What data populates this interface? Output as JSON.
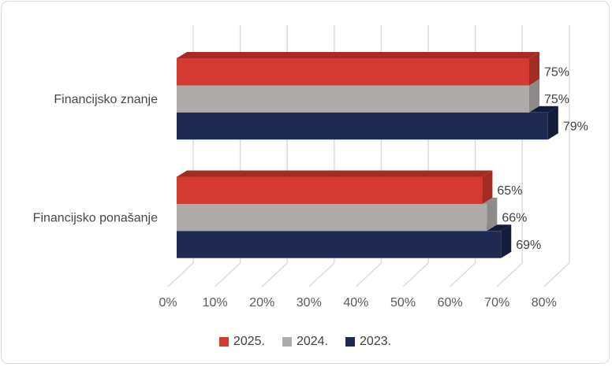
{
  "chart_data": {
    "type": "bar",
    "orientation": "horizontal",
    "style": "3d",
    "title": "",
    "xlabel": "",
    "ylabel": "",
    "categories": [
      "Financijsko znanje",
      "Financijsko ponašanje"
    ],
    "series": [
      {
        "name": "2025.",
        "color": "#d23a32",
        "dark_color": "#a52b25",
        "values": [
          75,
          65
        ]
      },
      {
        "name": "2024.",
        "color": "#aeabab",
        "dark_color": "#8e8a8a",
        "values": [
          75,
          66
        ]
      },
      {
        "name": "2023.",
        "color": "#1f2a52",
        "dark_color": "#141c3b",
        "values": [
          79,
          69
        ]
      }
    ],
    "value_suffix": "%",
    "xlim": [
      0,
      80
    ],
    "ticks": [
      {
        "value": 0,
        "label": "0%"
      },
      {
        "value": 10,
        "label": "10%"
      },
      {
        "value": 20,
        "label": "20%"
      },
      {
        "value": 30,
        "label": "30%"
      },
      {
        "value": 40,
        "label": "40%"
      },
      {
        "value": 50,
        "label": "50%"
      },
      {
        "value": 60,
        "label": "60%"
      },
      {
        "value": 70,
        "label": "70%"
      },
      {
        "value": 80,
        "label": "80%"
      }
    ],
    "grid": true,
    "legend_position": "bottom"
  },
  "colors": {
    "background": "#ffffff",
    "frame_border": "#d9d9d9",
    "gridline": "#d9d9d9",
    "axis_text": "#595959",
    "category_text": "#474747",
    "value_text": "#404040"
  }
}
